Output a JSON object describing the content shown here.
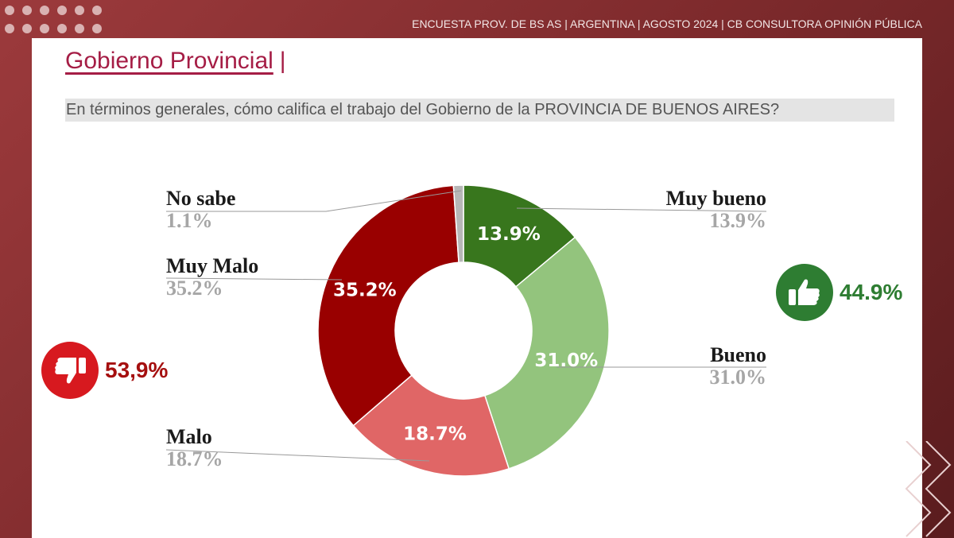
{
  "header": {
    "text": "ENCUESTA PROV. DE BS AS |  ARGENTINA  | AGOSTO  2024 | CB CONSULTORA OPINIÓN PÚBLICA"
  },
  "title": "Gobierno Provincial",
  "title_sep": "|",
  "question": "En términos generales, cómo califica el trabajo del Gobierno de la PROVINCIA DE BUENOS AIRES?",
  "chart_data": {
    "type": "pie",
    "donut": true,
    "title": "Gobierno Provincial",
    "slices": [
      {
        "name": "Muy bueno",
        "value": 13.9,
        "label": "13.9%",
        "color": "#38761d"
      },
      {
        "name": "Bueno",
        "value": 31.0,
        "label": "31.0%",
        "color": "#93c47d"
      },
      {
        "name": "Malo",
        "value": 18.7,
        "label": "18.7%",
        "color": "#e06666"
      },
      {
        "name": "Muy Malo",
        "value": 35.2,
        "label": "35.2%",
        "color": "#990000"
      },
      {
        "name": "No sabe",
        "value": 1.1,
        "label": "1.1%",
        "color": "#b7b7b7"
      }
    ]
  },
  "positive": {
    "value": "44.9%",
    "color": "#2e7d32"
  },
  "negative": {
    "value": "53,9%",
    "color": "#a50f0f"
  }
}
